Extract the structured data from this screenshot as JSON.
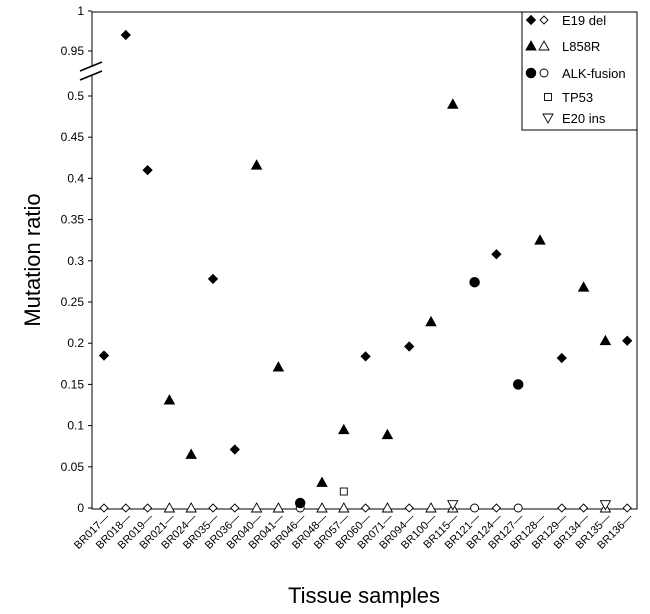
{
  "chart_data": {
    "type": "scatter",
    "xlabel": "Tissue samples",
    "ylabel": "Mutation ratio",
    "ylim": [
      0,
      1
    ],
    "axis_break": {
      "below": 0.5,
      "above": 0.95
    },
    "y_ticks_lower": [
      "0",
      "0.05",
      "0.1",
      "0.15",
      "0.2",
      "0.25",
      "0.3",
      "0.35",
      "0.4",
      "0.45",
      "0.5"
    ],
    "y_ticks_upper": [
      "0.95",
      "1"
    ],
    "categories": [
      "BR017",
      "BR018",
      "BR019",
      "BR021",
      "BR024",
      "BR035",
      "BR036",
      "BR040",
      "BR041",
      "BR046",
      "BR048",
      "BR057",
      "BR060",
      "BR071",
      "BR094",
      "BR100",
      "BR115",
      "BR121",
      "BR124",
      "BR127",
      "BR128",
      "BR129",
      "BR134",
      "BR135",
      "BR136"
    ],
    "category_suffix": "—",
    "legend": {
      "placement": "top-right",
      "entries": [
        {
          "label": "E19 del",
          "markers": [
            "diamond-filled",
            "diamond-open"
          ]
        },
        {
          "label": "L858R",
          "markers": [
            "triangle-filled",
            "triangle-open"
          ]
        },
        {
          "label": "ALK-fusion",
          "markers": [
            "circle-filled",
            "circle-open"
          ]
        },
        {
          "label": "TP53",
          "markers": [
            "square-open"
          ]
        },
        {
          "label": "E20 ins",
          "markers": [
            "triangle-down-open"
          ]
        }
      ]
    },
    "series": [
      {
        "name": "E19 del (mutant)",
        "marker": "diamond-filled",
        "points": [
          [
            "BR017",
            0.185
          ],
          [
            "BR018",
            0.97
          ],
          [
            "BR019",
            0.41
          ],
          [
            "BR035",
            0.278
          ],
          [
            "BR036",
            0.071
          ],
          [
            "BR060",
            0.184
          ],
          [
            "BR094",
            0.196
          ],
          [
            "BR124",
            0.308
          ],
          [
            "BR129",
            0.182
          ],
          [
            "BR136",
            0.203
          ]
        ]
      },
      {
        "name": "L858R (mutant)",
        "marker": "triangle-filled",
        "points": [
          [
            "BR021",
            0.131
          ],
          [
            "BR024",
            0.065
          ],
          [
            "BR040",
            0.416
          ],
          [
            "BR041",
            0.171
          ],
          [
            "BR048",
            0.031
          ],
          [
            "BR057",
            0.095
          ],
          [
            "BR071",
            0.089
          ],
          [
            "BR100",
            0.226
          ],
          [
            "BR115",
            0.49
          ],
          [
            "BR128",
            0.325
          ],
          [
            "BR134",
            0.268
          ],
          [
            "BR135",
            0.203
          ]
        ]
      },
      {
        "name": "ALK-fusion (positive)",
        "marker": "circle-filled",
        "points": [
          [
            "BR046",
            0.006
          ],
          [
            "BR121",
            0.274
          ],
          [
            "BR127",
            0.15
          ]
        ]
      },
      {
        "name": "TP53",
        "marker": "square-open",
        "points": [
          [
            "BR057",
            0.02
          ]
        ]
      },
      {
        "name": "E20 ins",
        "marker": "triangle-down-open",
        "points": [
          [
            "BR115",
            0.004
          ],
          [
            "BR135",
            0.004
          ]
        ]
      },
      {
        "name": "E19 del (wild type)",
        "marker": "diamond-open",
        "points": [
          [
            "BR017",
            0
          ],
          [
            "BR018",
            0
          ],
          [
            "BR019",
            0
          ],
          [
            "BR035",
            0
          ],
          [
            "BR036",
            0
          ],
          [
            "BR060",
            0
          ],
          [
            "BR094",
            0
          ],
          [
            "BR124",
            0
          ],
          [
            "BR129",
            0
          ],
          [
            "BR134",
            0
          ],
          [
            "BR136",
            0
          ]
        ]
      },
      {
        "name": "L858R (wild type)",
        "marker": "triangle-open",
        "points": [
          [
            "BR021",
            0
          ],
          [
            "BR024",
            0
          ],
          [
            "BR040",
            0
          ],
          [
            "BR041",
            0
          ],
          [
            "BR048",
            0
          ],
          [
            "BR057",
            0
          ],
          [
            "BR071",
            0
          ],
          [
            "BR100",
            0
          ],
          [
            "BR115",
            0
          ],
          [
            "BR135",
            0
          ]
        ]
      },
      {
        "name": "ALK-fusion (negative)",
        "marker": "circle-open",
        "points": [
          [
            "BR046",
            0
          ],
          [
            "BR121",
            0
          ],
          [
            "BR127",
            0
          ]
        ]
      }
    ]
  }
}
